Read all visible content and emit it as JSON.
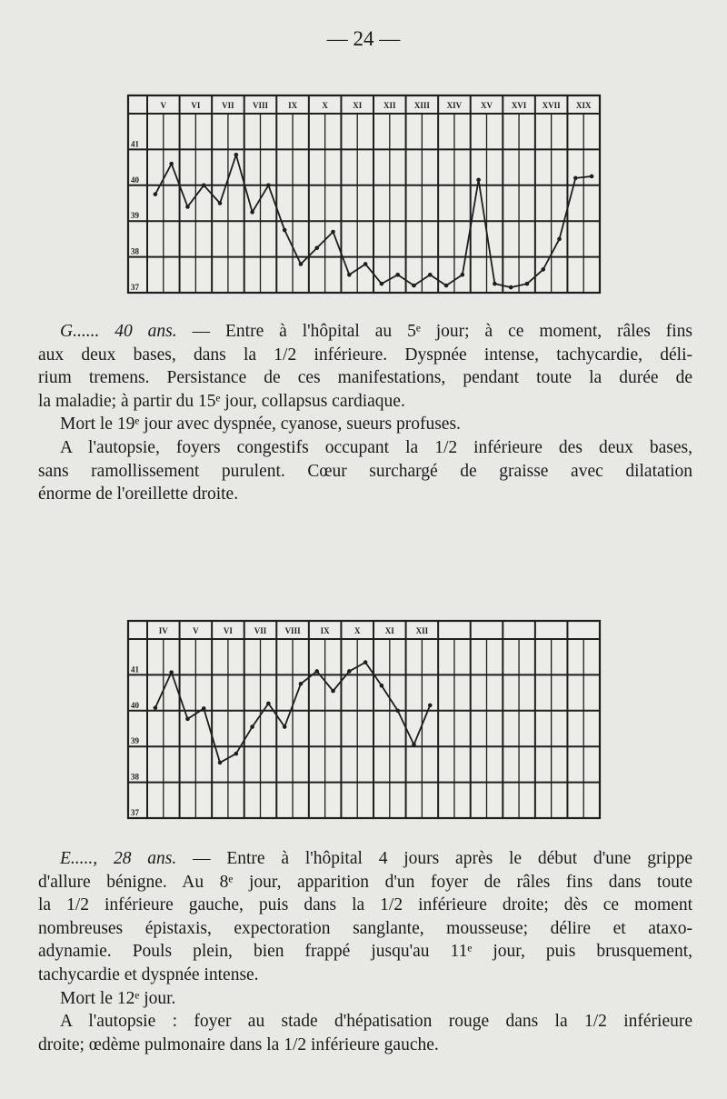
{
  "page_number": "— 24 —",
  "chart_data": [
    {
      "type": "line",
      "title": "",
      "xlabel": "",
      "ylabel": "",
      "day_labels": [
        "V",
        "VI",
        "VII",
        "VIII",
        "IX",
        "X",
        "XI",
        "XII",
        "XIII",
        "XIV",
        "XV",
        "XVI",
        "XVII",
        "XIX"
      ],
      "y_tick_labels": [
        "41",
        "40",
        "39",
        "38",
        "37"
      ],
      "ylim": [
        37,
        42
      ],
      "readings_per_day": 2,
      "grid": true,
      "values": [
        39.75,
        40.6,
        39.4,
        40.0,
        39.5,
        40.85,
        39.25,
        40.0,
        38.75,
        37.8,
        38.25,
        38.7,
        37.5,
        37.8,
        37.25,
        37.5,
        37.2,
        37.5,
        37.2,
        37.5,
        40.15,
        37.25,
        37.15,
        37.25,
        37.65,
        38.5,
        40.2,
        40.25
      ]
    },
    {
      "type": "line",
      "title": "",
      "xlabel": "",
      "ylabel": "",
      "day_labels": [
        "IV",
        "V",
        "VI",
        "VII",
        "VIII",
        "IX",
        "X",
        "XI",
        "XII",
        "",
        "",
        "",
        "",
        ""
      ],
      "y_tick_labels": [
        "41",
        "40",
        "39",
        "38",
        "37"
      ],
      "ylim": [
        37,
        42
      ],
      "readings_per_day": 2,
      "grid": true,
      "values": [
        40.08,
        41.07,
        39.77,
        40.06,
        38.55,
        38.8,
        39.55,
        40.2,
        39.55,
        40.75,
        41.1,
        40.55,
        41.1,
        41.35,
        40.7,
        40.0,
        39.05,
        40.15
      ]
    }
  ],
  "cases": [
    {
      "lead": "G...... 40 ans.",
      "paragraphs": [
        [
          "— Entre à l'hôpital au 5ᵉ jour; à ce moment, râles fins",
          "aux deux bases, dans la 1/2 inférieure. Dyspnée intense, tachycardie, déli-",
          "rium tremens. Persistance de ces manifestations, pendant toute la durée de",
          "la maladie; à partir du 15ᵉ jour, collapsus cardiaque."
        ],
        [
          "Mort le 19ᵉ jour avec dyspnée, cyanose, sueurs profuses."
        ],
        [
          "A l'autopsie, foyers congestifs occupant la 1/2 inférieure des deux bases,",
          "sans ramollissement purulent. Cœur surchargé de graisse avec dilatation",
          "énorme de l'oreillette droite."
        ]
      ]
    },
    {
      "lead": "E....., 28 ans.",
      "paragraphs": [
        [
          "— Entre à l'hôpital 4 jours après le début d'une grippe",
          "d'allure bénigne. Au 8ᵉ jour, apparition d'un foyer de râles fins dans toute",
          "la 1/2 inférieure gauche, puis dans la 1/2 inférieure droite; dès ce moment",
          "nombreuses épistaxis, expectoration sanglante, mousseuse; délire et ataxo-",
          "adynamie. Pouls plein, bien frappé jusqu'au 11ᵉ jour, puis brusquement,",
          "tachycardie et dyspnée intense."
        ],
        [
          "Mort le 12ᵉ jour."
        ],
        [
          "A l'autopsie : foyer au stade d'hépatisation rouge dans la 1/2 inférieure",
          "droite; œdème pulmonaire dans la 1/2 inférieure gauche."
        ]
      ]
    }
  ]
}
